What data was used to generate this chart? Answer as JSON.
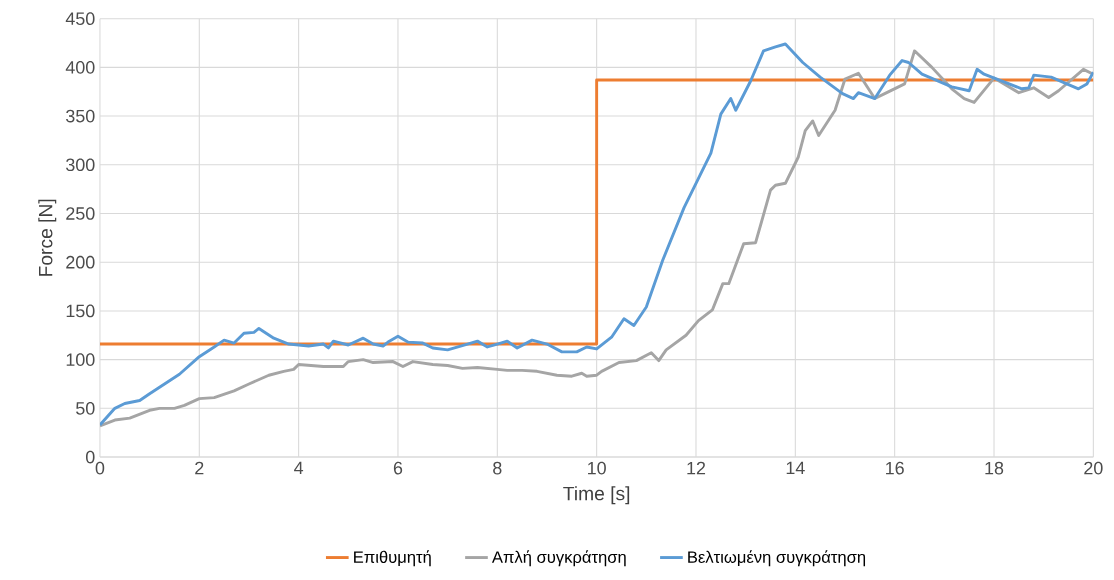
{
  "chart_data": {
    "type": "line",
    "xlabel": "Time [s]",
    "ylabel": "Force [N]",
    "xlim": [
      0,
      20
    ],
    "xticks": [
      0,
      2,
      4,
      6,
      8,
      10,
      12,
      14,
      16,
      18,
      20
    ],
    "ylim": [
      0,
      450
    ],
    "yticks": [
      0,
      50,
      100,
      150,
      200,
      250,
      300,
      350,
      400,
      450
    ],
    "grid": true,
    "legend": "bottom",
    "marker": "none",
    "line_style": "solid",
    "series": [
      {
        "name": "Επιθυμητή",
        "color": "#ed7d31",
        "x": [
          0,
          10,
          10,
          20
        ],
        "values": [
          116,
          116,
          387,
          387
        ]
      },
      {
        "name": "Απλή συγκράτηση",
        "color": "#a5a5a5",
        "x": [
          0,
          0.3,
          0.6,
          1.0,
          1.2,
          1.5,
          1.7,
          2.0,
          2.3,
          2.7,
          3.0,
          3.4,
          3.7,
          3.9,
          4.0,
          4.5,
          4.9,
          5.0,
          5.3,
          5.5,
          5.9,
          6.1,
          6.3,
          6.7,
          7.0,
          7.3,
          7.6,
          8.0,
          8.2,
          8.5,
          8.8,
          9.2,
          9.5,
          9.7,
          9.8,
          10.0,
          10.1,
          10.45,
          10.8,
          11.1,
          11.25,
          11.4,
          11.8,
          12.05,
          12.33,
          12.54,
          12.66,
          12.96,
          13.2,
          13.5,
          13.6,
          13.8,
          14.06,
          14.2,
          14.35,
          14.47,
          14.8,
          15.0,
          15.27,
          15.6,
          15.8,
          16.2,
          16.4,
          16.75,
          17.15,
          17.4,
          17.6,
          18.0,
          18.5,
          18.8,
          19.1,
          19.3,
          19.8,
          20.0
        ],
        "values": [
          32,
          38,
          40,
          48,
          50,
          50,
          53,
          60,
          61,
          68,
          75,
          84,
          88,
          90,
          95,
          93,
          93,
          98,
          100,
          97,
          98,
          93,
          98,
          95,
          94,
          91,
          92,
          90,
          89,
          89,
          88,
          84,
          83,
          86,
          83,
          84,
          88,
          97,
          99,
          107,
          99,
          110,
          125,
          140,
          151,
          178,
          178,
          219,
          220,
          274,
          279,
          281,
          308,
          335,
          345,
          330,
          356,
          388,
          394,
          368,
          373,
          383,
          417,
          400,
          378,
          368,
          364,
          389,
          374,
          379,
          369,
          376,
          398,
          393
        ]
      },
      {
        "name": "Βελτιωμένη συγκράτηση",
        "color": "#5b9bd5",
        "x": [
          0,
          0.3,
          0.5,
          0.8,
          1.0,
          1.3,
          1.6,
          2.0,
          2.3,
          2.5,
          2.7,
          2.9,
          3.1,
          3.2,
          3.5,
          3.8,
          4.2,
          4.5,
          4.6,
          4.7,
          5.0,
          5.3,
          5.5,
          5.7,
          5.8,
          6.0,
          6.2,
          6.5,
          6.7,
          7.0,
          7.4,
          7.6,
          7.8,
          8.0,
          8.2,
          8.4,
          8.7,
          9.0,
          9.3,
          9.6,
          9.8,
          10.0,
          10.3,
          10.55,
          10.75,
          11.0,
          11.33,
          11.76,
          12.3,
          12.5,
          12.7,
          12.8,
          13.1,
          13.36,
          13.6,
          13.8,
          14.15,
          14.5,
          14.95,
          15.17,
          15.27,
          15.6,
          15.9,
          16.15,
          16.28,
          16.55,
          17.15,
          17.5,
          17.66,
          17.8,
          18.56,
          18.7,
          18.8,
          19.15,
          19.7,
          19.87,
          20.0
        ],
        "values": [
          33,
          50,
          55,
          58,
          65,
          75,
          85,
          103,
          113,
          120,
          117,
          127,
          128,
          132,
          122,
          116,
          114,
          116,
          112,
          119,
          115,
          122,
          116,
          114,
          118,
          124,
          118,
          117,
          112,
          110,
          116,
          119,
          113,
          116,
          119,
          112,
          120,
          116,
          108,
          108,
          113,
          111,
          123,
          142,
          135,
          154,
          202,
          256,
          312,
          352,
          368,
          356,
          386,
          417,
          421,
          424,
          405,
          390,
          373,
          368,
          374,
          368,
          392,
          407,
          405,
          393,
          380,
          376,
          398,
          393,
          378,
          379,
          392,
          390,
          378,
          383,
          395
        ]
      }
    ]
  }
}
